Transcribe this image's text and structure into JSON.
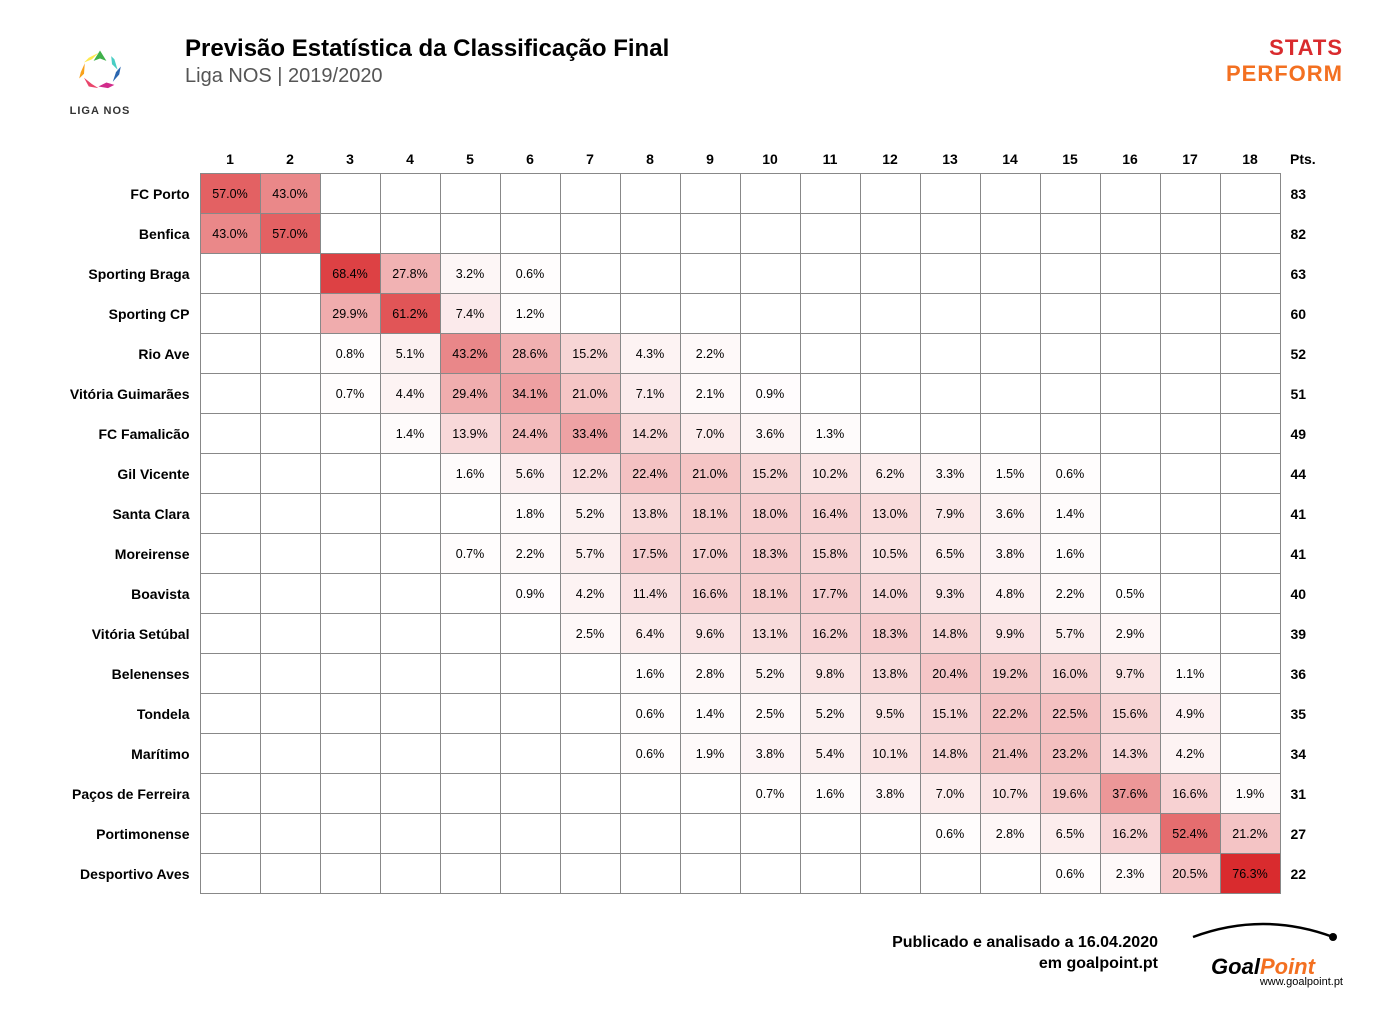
{
  "header": {
    "logo_left_text": "LIGA NOS",
    "title": "Previsão Estatística da Classificação Final",
    "subtitle": "Liga NOS | 2019/2020",
    "stats_1": "STATS",
    "stats_2": "PERFORM"
  },
  "heatmap": {
    "type": "heatmap",
    "positions": [
      1,
      2,
      3,
      4,
      5,
      6,
      7,
      8,
      9,
      10,
      11,
      12,
      13,
      14,
      15,
      16,
      17,
      18
    ],
    "pts_header": "Pts.",
    "colorscale": {
      "base": "#d92b2e",
      "bg_empty": "#ffffff",
      "border": "#888888",
      "text": "#000000"
    },
    "max_value": 76.3,
    "teams": [
      {
        "name": "FC Porto",
        "pts": 83,
        "probs": [
          57.0,
          43.0,
          null,
          null,
          null,
          null,
          null,
          null,
          null,
          null,
          null,
          null,
          null,
          null,
          null,
          null,
          null,
          null
        ]
      },
      {
        "name": "Benfica",
        "pts": 82,
        "probs": [
          43.0,
          57.0,
          null,
          null,
          null,
          null,
          null,
          null,
          null,
          null,
          null,
          null,
          null,
          null,
          null,
          null,
          null,
          null
        ]
      },
      {
        "name": "Sporting Braga",
        "pts": 63,
        "probs": [
          null,
          null,
          68.4,
          27.8,
          3.2,
          0.6,
          null,
          null,
          null,
          null,
          null,
          null,
          null,
          null,
          null,
          null,
          null,
          null
        ]
      },
      {
        "name": "Sporting CP",
        "pts": 60,
        "probs": [
          null,
          null,
          29.9,
          61.2,
          7.4,
          1.2,
          null,
          null,
          null,
          null,
          null,
          null,
          null,
          null,
          null,
          null,
          null,
          null
        ]
      },
      {
        "name": "Rio Ave",
        "pts": 52,
        "probs": [
          null,
          null,
          0.8,
          5.1,
          43.2,
          28.6,
          15.2,
          4.3,
          2.2,
          null,
          null,
          null,
          null,
          null,
          null,
          null,
          null,
          null
        ]
      },
      {
        "name": "Vitória Guimarães",
        "pts": 51,
        "probs": [
          null,
          null,
          0.7,
          4.4,
          29.4,
          34.1,
          21.0,
          7.1,
          2.1,
          0.9,
          null,
          null,
          null,
          null,
          null,
          null,
          null,
          null
        ]
      },
      {
        "name": "FC Famalicão",
        "pts": 49,
        "probs": [
          null,
          null,
          null,
          1.4,
          13.9,
          24.4,
          33.4,
          14.2,
          7.0,
          3.6,
          1.3,
          null,
          null,
          null,
          null,
          null,
          null,
          null
        ]
      },
      {
        "name": "Gil Vicente",
        "pts": 44,
        "probs": [
          null,
          null,
          null,
          null,
          1.6,
          5.6,
          12.2,
          22.4,
          21.0,
          15.2,
          10.2,
          6.2,
          3.3,
          1.5,
          0.6,
          null,
          null,
          null
        ]
      },
      {
        "name": "Santa Clara",
        "pts": 41,
        "probs": [
          null,
          null,
          null,
          null,
          null,
          1.8,
          5.2,
          13.8,
          18.1,
          18.0,
          16.4,
          13.0,
          7.9,
          3.6,
          1.4,
          null,
          null,
          null
        ]
      },
      {
        "name": "Moreirense",
        "pts": 41,
        "probs": [
          null,
          null,
          null,
          null,
          0.7,
          2.2,
          5.7,
          17.5,
          17.0,
          18.3,
          15.8,
          10.5,
          6.5,
          3.8,
          1.6,
          null,
          null,
          null
        ]
      },
      {
        "name": "Boavista",
        "pts": 40,
        "probs": [
          null,
          null,
          null,
          null,
          null,
          0.9,
          4.2,
          11.4,
          16.6,
          18.1,
          17.7,
          14.0,
          9.3,
          4.8,
          2.2,
          0.5,
          null,
          null
        ]
      },
      {
        "name": "Vitória Setúbal",
        "pts": 39,
        "probs": [
          null,
          null,
          null,
          null,
          null,
          null,
          2.5,
          6.4,
          9.6,
          13.1,
          16.2,
          18.3,
          14.8,
          9.9,
          5.7,
          2.9,
          null,
          null
        ]
      },
      {
        "name": "Belenenses",
        "pts": 36,
        "probs": [
          null,
          null,
          null,
          null,
          null,
          null,
          null,
          1.6,
          2.8,
          5.2,
          9.8,
          13.8,
          20.4,
          19.2,
          16.0,
          9.7,
          1.1,
          null
        ]
      },
      {
        "name": "Tondela",
        "pts": 35,
        "probs": [
          null,
          null,
          null,
          null,
          null,
          null,
          null,
          0.6,
          1.4,
          2.5,
          5.2,
          9.5,
          15.1,
          22.2,
          22.5,
          15.6,
          4.9,
          null
        ]
      },
      {
        "name": "Marítimo",
        "pts": 34,
        "probs": [
          null,
          null,
          null,
          null,
          null,
          null,
          null,
          0.6,
          1.9,
          3.8,
          5.4,
          10.1,
          14.8,
          21.4,
          23.2,
          14.3,
          4.2,
          null
        ]
      },
      {
        "name": "Paços de Ferreira",
        "pts": 31,
        "probs": [
          null,
          null,
          null,
          null,
          null,
          null,
          null,
          null,
          null,
          0.7,
          1.6,
          3.8,
          7.0,
          10.7,
          19.6,
          37.6,
          16.6,
          1.9
        ]
      },
      {
        "name": "Portimonense",
        "pts": 27,
        "probs": [
          null,
          null,
          null,
          null,
          null,
          null,
          null,
          null,
          null,
          null,
          null,
          null,
          0.6,
          2.8,
          6.5,
          16.2,
          52.4,
          21.2
        ]
      },
      {
        "name": "Desportivo Aves",
        "pts": 22,
        "probs": [
          null,
          null,
          null,
          null,
          null,
          null,
          null,
          null,
          null,
          null,
          null,
          null,
          null,
          null,
          0.6,
          2.3,
          20.5,
          76.3
        ]
      }
    ]
  },
  "footer": {
    "line1": "Publicado e analisado a 16.04.2020",
    "line2": "em goalpoint.pt",
    "gp1": "Goal",
    "gp2": "Point",
    "gp_url": "www.goalpoint.pt"
  }
}
